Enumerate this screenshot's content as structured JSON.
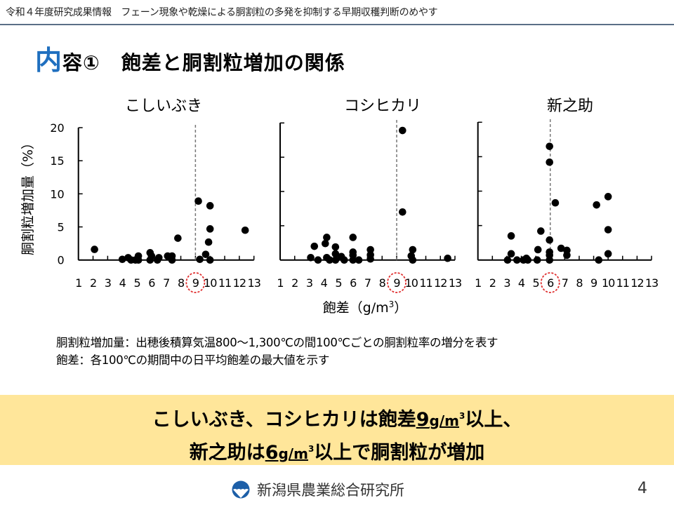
{
  "header": {
    "text": "令和４年度研究成果情報　フェーン現象や乾燥による胴割粒の多発を抑制する早期収穫判断のめやす"
  },
  "title": {
    "first_char": "内",
    "rest": "容①",
    "main": "飽差と胴割粒増加の関係"
  },
  "colors": {
    "accent": "#1f6fbf",
    "band": "#ffe69a",
    "threshold_circle": "#e03030"
  },
  "chart_data": [
    {
      "type": "scatter",
      "title": "こしいぶき",
      "xlim": [
        1,
        13
      ],
      "ylim": [
        0,
        20
      ],
      "xticks": [
        "1",
        "2",
        "3",
        "4",
        "5",
        "6",
        "7",
        "8",
        "9",
        "10",
        "11",
        "12",
        "13"
      ],
      "yticks": [
        "0",
        "5",
        "10",
        "15",
        "20"
      ],
      "threshold": 9,
      "points": [
        [
          2.1,
          1.6
        ],
        [
          4.0,
          0.1
        ],
        [
          4.4,
          0.35
        ],
        [
          4.6,
          0
        ],
        [
          4.9,
          0
        ],
        [
          5.1,
          0.6
        ],
        [
          5.1,
          0
        ],
        [
          5.9,
          1.1
        ],
        [
          5.9,
          0
        ],
        [
          6.0,
          0.6
        ],
        [
          6.4,
          0
        ],
        [
          6.5,
          0.35
        ],
        [
          7.1,
          0.6
        ],
        [
          7.4,
          0.6
        ],
        [
          7.4,
          0
        ],
        [
          7.8,
          3.3
        ],
        [
          9.2,
          8.9
        ],
        [
          9.3,
          0.1
        ],
        [
          9.7,
          0.85
        ],
        [
          9.9,
          2.7
        ],
        [
          10.0,
          4.7
        ],
        [
          10.0,
          8.2
        ],
        [
          10.0,
          0
        ],
        [
          12.4,
          4.5
        ]
      ]
    },
    {
      "type": "scatter",
      "title": "コシヒカリ",
      "xlim": [
        1,
        13
      ],
      "ylim": [
        0,
        20
      ],
      "xticks": [
        "1",
        "2",
        "3",
        "4",
        "5",
        "6",
        "7",
        "8",
        "9",
        "10",
        "11",
        "12",
        "13"
      ],
      "threshold": 9,
      "points": [
        [
          9.4,
          18.9
        ],
        [
          9.4,
          7.0
        ],
        [
          3.1,
          0.35
        ],
        [
          3.6,
          0
        ],
        [
          3.35,
          2.0
        ],
        [
          4.1,
          2.4
        ],
        [
          4.2,
          3.3
        ],
        [
          4.2,
          0.35
        ],
        [
          4.4,
          0
        ],
        [
          4.8,
          1.9
        ],
        [
          4.8,
          0.9
        ],
        [
          4.8,
          0
        ],
        [
          5.2,
          0.5
        ],
        [
          5.4,
          0
        ],
        [
          6.0,
          3.3
        ],
        [
          6.0,
          1.15
        ],
        [
          6.0,
          0.7
        ],
        [
          6.0,
          0
        ],
        [
          6.4,
          0
        ],
        [
          7.2,
          1.5
        ],
        [
          7.2,
          0.75
        ],
        [
          7.2,
          0.15
        ],
        [
          10.1,
          1.5
        ],
        [
          10.0,
          0.6
        ],
        [
          10.1,
          0
        ],
        [
          12.5,
          0.25
        ]
      ]
    },
    {
      "type": "scatter",
      "title": "新之助",
      "xlim": [
        1,
        13
      ],
      "ylim": [
        0,
        20
      ],
      "xticks": [
        "1",
        "2",
        "3",
        "4",
        "5",
        "6",
        "7",
        "8",
        "9",
        "10",
        "11",
        "12",
        "13"
      ],
      "threshold": 6,
      "points": [
        [
          5.95,
          16.5
        ],
        [
          5.95,
          14.2
        ],
        [
          6.35,
          8.3
        ],
        [
          5.35,
          4.2
        ],
        [
          5.95,
          2.9
        ],
        [
          3.3,
          3.5
        ],
        [
          3.3,
          0.9
        ],
        [
          3.05,
          0
        ],
        [
          3.7,
          0
        ],
        [
          4.15,
          0
        ],
        [
          4.35,
          0.25
        ],
        [
          4.45,
          0
        ],
        [
          5.1,
          0
        ],
        [
          5.15,
          1.5
        ],
        [
          5.95,
          1.15
        ],
        [
          5.95,
          0.7
        ],
        [
          5.95,
          0
        ],
        [
          6.75,
          1.7
        ],
        [
          7.15,
          1.4
        ],
        [
          7.15,
          0.7
        ],
        [
          9.2,
          8.0
        ],
        [
          9.35,
          0
        ],
        [
          10.0,
          9.2
        ],
        [
          10.0,
          4.4
        ],
        [
          10.0,
          0.9
        ]
      ]
    }
  ],
  "axes": {
    "ylabel": "胴割粒増加量（%）",
    "xlabel_prefix": "飽差（g/m",
    "xlabel_sup": "3",
    "xlabel_suffix": "）"
  },
  "notes": [
    "胴割粒増加量：出穂後積算気温800～1,300℃の間100℃ごとの胴割粒率の増分を表す",
    "飽差：各100℃の期間中の日平均飽差の最大値を示す"
  ],
  "conclusion": {
    "l1_a": "こしいぶき、コシヒカリは飽差",
    "l1_num": "9",
    "l1_unit": "g/m",
    "l1_sup": "3",
    "l1_b": "以上、",
    "l2_a": "新之助は",
    "l2_num": "6",
    "l2_unit": "g/m",
    "l2_sup": "3",
    "l2_b": "以上で胴割粒が増加"
  },
  "footer": {
    "org": "新潟県農業総合研究所",
    "logo_icon": "org-logo-icon",
    "page": "4"
  }
}
